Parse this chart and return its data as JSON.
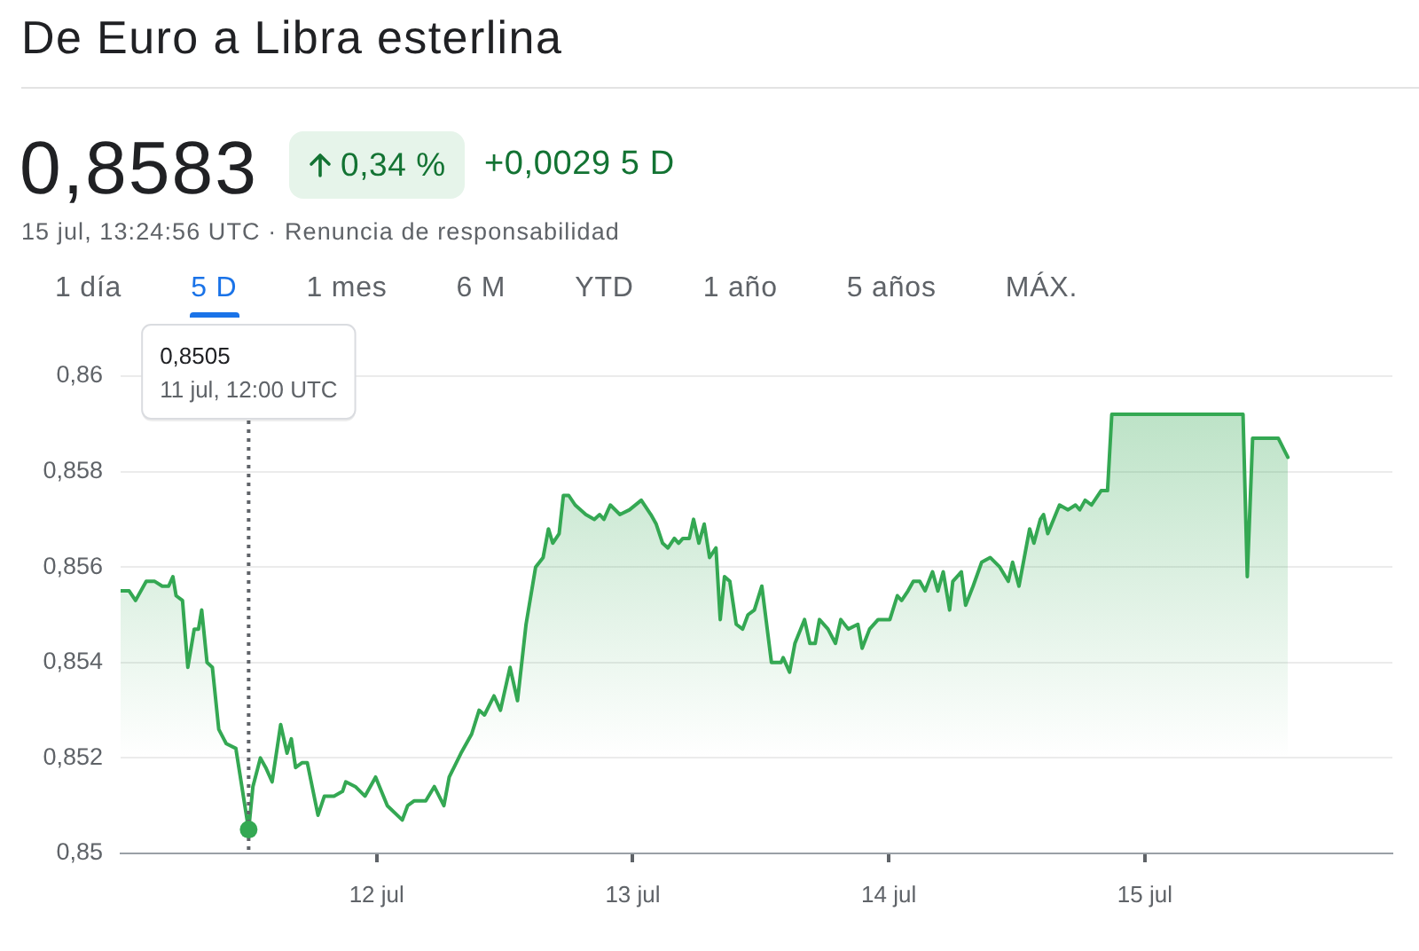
{
  "chart_data": {
    "type": "area",
    "title": "De Euro a Libra esterlina",
    "annotations": [
      "0,8583",
      "0,34 %",
      "+0,0029 5 D",
      "15 jul, 13:24:56 UTC · Renuncia de responsabilidad",
      "1 día",
      "5 D",
      "1 mes",
      "6 M",
      "YTD",
      "1 año",
      "5 años",
      "MÁX.",
      "0,8505",
      "11 jul, 12:00 UTC"
    ],
    "x": [
      "--07-11T00:00",
      "--07-11T00:48",
      "--07-11T01:24",
      "--07-11T02:24",
      "--07-11T03:12",
      "--07-11T03:54",
      "--07-11T04:30",
      "--07-11T04:54",
      "--07-11T05:12",
      "--07-11T05:48",
      "--07-11T06:18",
      "--07-11T06:54",
      "--07-11T07:18",
      "--07-11T07:36",
      "--07-11T08:06",
      "--07-11T08:36",
      "--07-11T09:12",
      "--07-11T09:54",
      "--07-11T10:48",
      "--07-11T12:00",
      "--07-11T12:24",
      "--07-11T13:06",
      "--07-11T13:36",
      "--07-11T14:12",
      "--07-11T15:00",
      "--07-11T15:36",
      "--07-11T16:00",
      "--07-11T16:24",
      "--07-11T17:00",
      "--07-11T17:30",
      "--07-11T18:30",
      "--07-11T19:06",
      "--07-11T20:00",
      "--07-11T20:48",
      "--07-11T21:06",
      "--07-11T22:00",
      "--07-11T22:54",
      "--07-11T23:54",
      "--07-12T01:00",
      "--07-12T02:24",
      "--07-12T02:54",
      "--07-12T03:30",
      "--07-12T04:36",
      "--07-12T05:24",
      "--07-12T06:18",
      "--07-12T06:48",
      "--07-12T07:54",
      "--07-12T08:54",
      "--07-12T09:36",
      "--07-12T10:06",
      "--07-12T11:00",
      "--07-12T11:36",
      "--07-12T12:30",
      "--07-12T13:12",
      "--07-12T14:00",
      "--07-12T14:54",
      "--07-12T15:36",
      "--07-12T16:06",
      "--07-12T16:30",
      "--07-12T17:06",
      "--07-12T17:30",
      "--07-12T18:00",
      "--07-12T18:36",
      "--07-12T19:36",
      "--07-12T20:24",
      "--07-12T20:54",
      "--07-12T21:18",
      "--07-12T21:54",
      "--07-12T22:48",
      "--07-12T23:42",
      "--07-13T00:48",
      "--07-13T01:42",
      "--07-13T02:12",
      "--07-13T02:48",
      "--07-13T03:18",
      "--07-13T03:54",
      "--07-13T04:18",
      "--07-13T04:42",
      "--07-13T05:18",
      "--07-13T05:42",
      "--07-13T06:12",
      "--07-13T06:42",
      "--07-13T07:12",
      "--07-13T07:48",
      "--07-13T08:12",
      "--07-13T08:36",
      "--07-13T09:06",
      "--07-13T09:42",
      "--07-13T10:18",
      "--07-13T10:48",
      "--07-13T11:24",
      "--07-13T12:06",
      "--07-13T13:00",
      "--07-13T13:54",
      "--07-13T14:06",
      "--07-13T14:42",
      "--07-13T15:12",
      "--07-13T16:06",
      "--07-13T16:36",
      "--07-13T17:06",
      "--07-13T17:30",
      "--07-13T18:18",
      "--07-13T19:00",
      "--07-13T19:30",
      "--07-13T20:12",
      "--07-13T21:06",
      "--07-13T21:30",
      "--07-13T22:12",
      "--07-13T23:00",
      "--07-14T00:06",
      "--07-14T00:48",
      "--07-14T01:12",
      "--07-14T01:48",
      "--07-14T02:18",
      "--07-14T02:54",
      "--07-14T03:24",
      "--07-14T04:06",
      "--07-14T04:36",
      "--07-14T05:06",
      "--07-14T05:42",
      "--07-14T06:00",
      "--07-14T06:48",
      "--07-14T07:12",
      "--07-14T07:54",
      "--07-14T08:42",
      "--07-14T09:30",
      "--07-14T10:24",
      "--07-14T11:12",
      "--07-14T11:36",
      "--07-14T12:12",
      "--07-14T13:12",
      "--07-14T13:36",
      "--07-14T14:12",
      "--07-14T14:30",
      "--07-14T14:54",
      "--07-14T16:00",
      "--07-14T16:48",
      "--07-14T17:30",
      "--07-14T17:54",
      "--07-14T18:24",
      "--07-14T19:00",
      "--07-14T19:54",
      "--07-14T20:30",
      "--07-14T20:54",
      "--07-15T09:12",
      "--07-15T09:36",
      "--07-15T10:06",
      "--07-15T12:30",
      "--07-15T13:24"
    ],
    "values": [
      0.8555,
      0.8555,
      0.8553,
      0.8557,
      0.8557,
      0.8556,
      0.8556,
      0.8558,
      0.8554,
      0.8553,
      0.8539,
      0.8547,
      0.8547,
      0.8551,
      0.854,
      0.8539,
      0.8526,
      0.8523,
      0.8522,
      0.8505,
      0.8514,
      0.852,
      0.8518,
      0.8515,
      0.8527,
      0.8521,
      0.8524,
      0.8518,
      0.8519,
      0.8519,
      0.8508,
      0.8512,
      0.8512,
      0.8513,
      0.8515,
      0.8514,
      0.8512,
      0.8516,
      0.851,
      0.8507,
      0.851,
      0.8511,
      0.8511,
      0.8514,
      0.851,
      0.8516,
      0.8521,
      0.8525,
      0.853,
      0.8529,
      0.8533,
      0.853,
      0.8539,
      0.8532,
      0.8548,
      0.856,
      0.8562,
      0.8568,
      0.8565,
      0.8567,
      0.8575,
      0.8575,
      0.8573,
      0.8571,
      0.857,
      0.8571,
      0.857,
      0.8573,
      0.8571,
      0.8572,
      0.8574,
      0.8571,
      0.8569,
      0.8565,
      0.8564,
      0.8566,
      0.8565,
      0.8566,
      0.8566,
      0.857,
      0.8565,
      0.8569,
      0.8562,
      0.8564,
      0.8549,
      0.8558,
      0.8557,
      0.8548,
      0.8547,
      0.855,
      0.8551,
      0.8556,
      0.854,
      0.854,
      0.8541,
      0.8538,
      0.8544,
      0.8549,
      0.8544,
      0.8544,
      0.8549,
      0.8547,
      0.8544,
      0.8549,
      0.8547,
      0.8548,
      0.8543,
      0.8547,
      0.8549,
      0.8549,
      0.8554,
      0.8553,
      0.8555,
      0.8557,
      0.8557,
      0.8555,
      0.8559,
      0.8555,
      0.8559,
      0.8551,
      0.8557,
      0.8559,
      0.8552,
      0.8556,
      0.8561,
      0.8562,
      0.856,
      0.8557,
      0.8561,
      0.8556,
      0.8568,
      0.8565,
      0.857,
      0.8571,
      0.8567,
      0.8573,
      0.8572,
      0.8573,
      0.8572,
      0.8574,
      0.8573,
      0.8576,
      0.8576,
      0.8592,
      0.8592,
      0.8558,
      0.8587,
      0.8587,
      0.8583
    ],
    "color": "#34a853",
    "xlim": [
      "--07-11T00:00",
      "--07-15T23:12"
    ],
    "xticks": [
      {
        "value": "--07-12",
        "label": "12 jul"
      },
      {
        "value": "--07-13",
        "label": "13 jul"
      },
      {
        "value": "--07-14",
        "label": "14 jul"
      },
      {
        "value": "--07-15",
        "label": "15 jul"
      }
    ],
    "ylim": [
      0.85,
      0.86
    ],
    "yticks": [
      {
        "value": 0.85,
        "label": "0,85"
      },
      {
        "value": 0.852,
        "label": "0,852"
      },
      {
        "value": 0.854,
        "label": "0,854"
      },
      {
        "value": 0.856,
        "label": "0,856"
      },
      {
        "value": 0.858,
        "label": "0,858"
      },
      {
        "value": 0.86,
        "label": "0,86"
      }
    ],
    "grid": "y",
    "ref_lines": [
      {
        "axis": "x",
        "value": "--07-11T12:00",
        "color": "#5f6368",
        "line_style": "dotted"
      }
    ]
  }
}
